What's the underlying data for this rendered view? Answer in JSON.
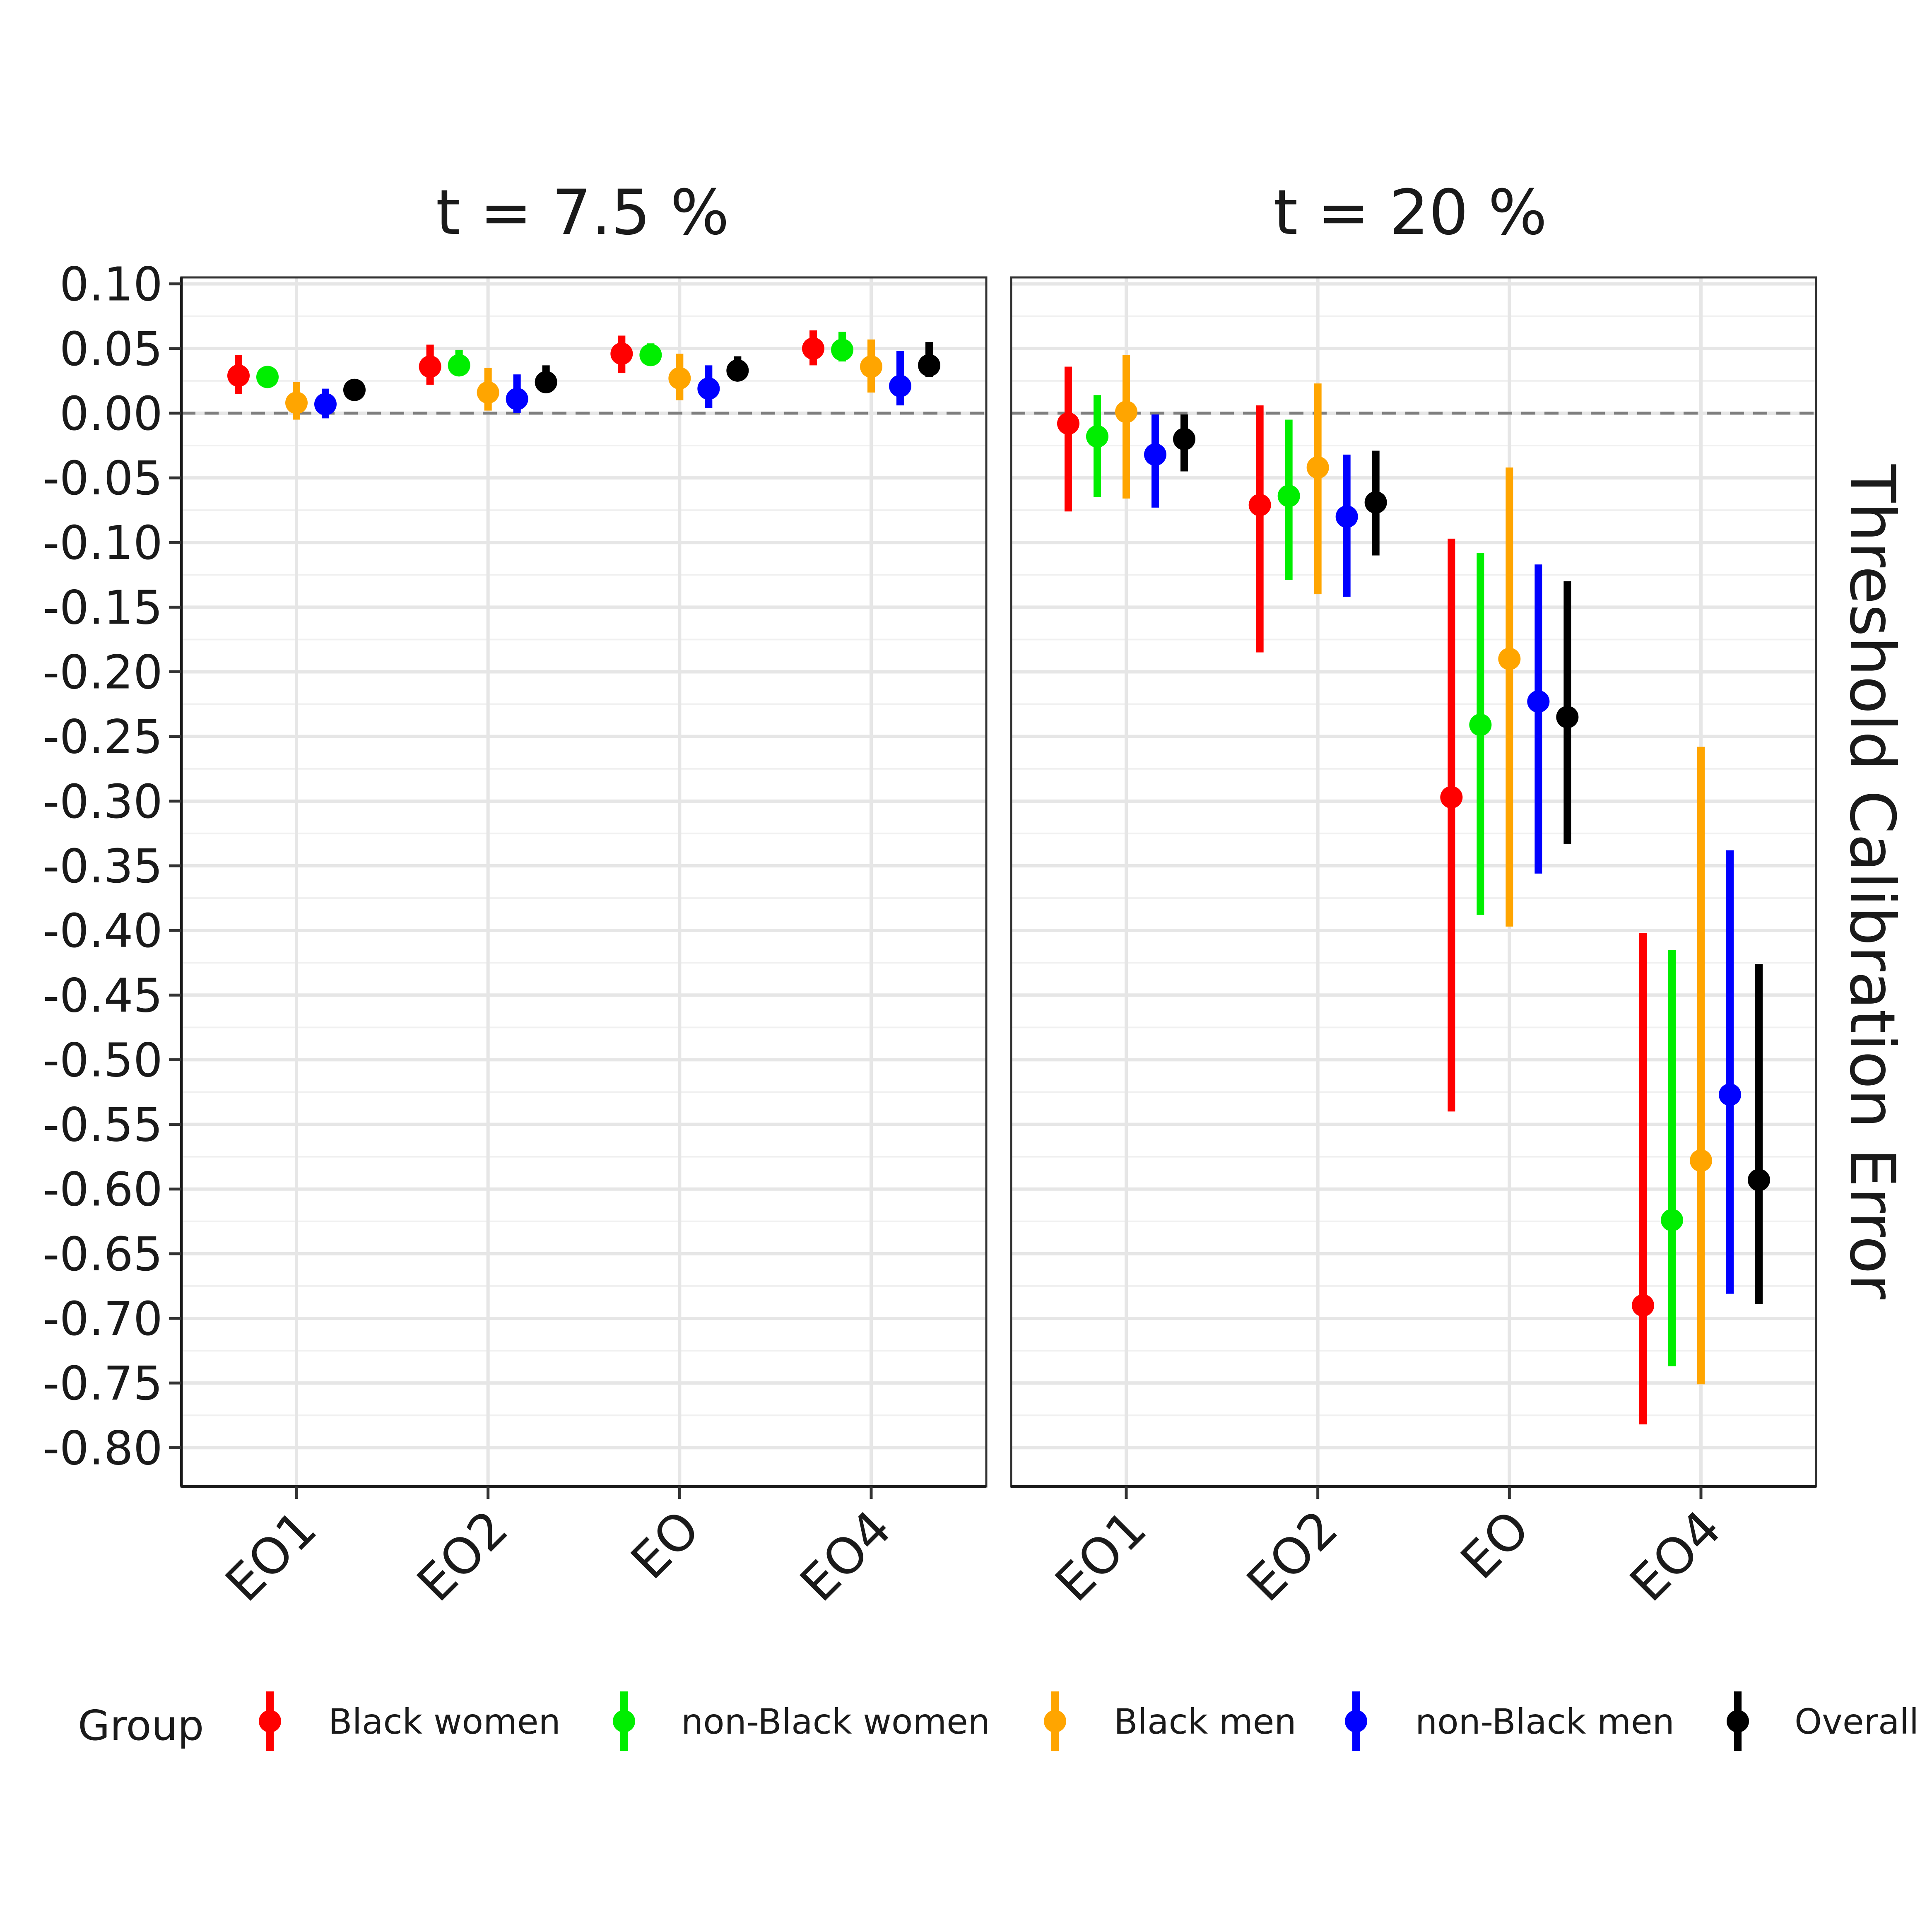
{
  "chart_data": {
    "type": "errorbar",
    "ylabel": "Threshold Calibration Error",
    "ylim": [
      -0.83,
      0.105
    ],
    "y_ticks": [
      "0.10",
      "0.05",
      "0.00",
      "-0.05",
      "-0.10",
      "-0.15",
      "-0.20",
      "-0.25",
      "-0.30",
      "-0.35",
      "-0.40",
      "-0.45",
      "-0.50",
      "-0.55",
      "-0.60",
      "-0.65",
      "-0.70",
      "-0.75",
      "-0.80"
    ],
    "y_tick_values": [
      0.1,
      0.05,
      0.0,
      -0.05,
      -0.1,
      -0.15,
      -0.2,
      -0.25,
      -0.3,
      -0.35,
      -0.4,
      -0.45,
      -0.5,
      -0.55,
      -0.6,
      -0.65,
      -0.7,
      -0.75,
      -0.8
    ],
    "reference_line": 0.0,
    "grid": true,
    "categories": [
      "EO1",
      "EO2",
      "EO",
      "EO4"
    ],
    "legend": {
      "title": "Group",
      "position": "bottom",
      "items": [
        "Black women",
        "non-Black women",
        "Black men",
        "non-Black men",
        "Overall"
      ]
    },
    "group_colors": [
      "#ff0000",
      "#00ee00",
      "#ffa500",
      "#0000ff",
      "#000000"
    ],
    "panels": [
      {
        "title": "t = 7.5 %",
        "series": [
          {
            "name": "Black women",
            "y": [
              0.029,
              0.036,
              0.046,
              0.05
            ],
            "lo": [
              0.015,
              0.022,
              0.031,
              0.037
            ],
            "hi": [
              0.045,
              0.053,
              0.06,
              0.064
            ]
          },
          {
            "name": "non-Black women",
            "y": [
              0.028,
              0.037,
              0.045,
              0.049
            ],
            "lo": [
              0.021,
              0.029,
              0.037,
              0.04
            ],
            "hi": [
              0.036,
              0.049,
              0.054,
              0.063
            ]
          },
          {
            "name": "Black men",
            "y": [
              0.008,
              0.016,
              0.027,
              0.036
            ],
            "lo": [
              -0.005,
              0.002,
              0.01,
              0.016
            ],
            "hi": [
              0.024,
              0.035,
              0.046,
              0.057
            ]
          },
          {
            "name": "non-Black men",
            "y": [
              0.007,
              0.011,
              0.019,
              0.021
            ],
            "lo": [
              -0.004,
              0.0,
              0.004,
              0.006
            ],
            "hi": [
              0.019,
              0.03,
              0.037,
              0.048
            ]
          },
          {
            "name": "Overall",
            "y": [
              0.018,
              0.024,
              0.033,
              0.037
            ],
            "lo": [
              0.013,
              0.019,
              0.027,
              0.028
            ],
            "hi": [
              0.024,
              0.037,
              0.044,
              0.055
            ]
          }
        ]
      },
      {
        "title": "t = 20 %",
        "series": [
          {
            "name": "Black women",
            "y": [
              -0.008,
              -0.071,
              -0.297,
              -0.69
            ],
            "lo": [
              -0.076,
              -0.185,
              -0.54,
              -0.782
            ],
            "hi": [
              0.036,
              0.006,
              -0.097,
              -0.402
            ]
          },
          {
            "name": "non-Black women",
            "y": [
              -0.018,
              -0.064,
              -0.241,
              -0.624
            ],
            "lo": [
              -0.065,
              -0.129,
              -0.388,
              -0.737
            ],
            "hi": [
              0.014,
              -0.005,
              -0.108,
              -0.415
            ]
          },
          {
            "name": "Black men",
            "y": [
              0.001,
              -0.042,
              -0.19,
              -0.578
            ],
            "lo": [
              -0.066,
              -0.14,
              -0.397,
              -0.751
            ],
            "hi": [
              0.045,
              0.023,
              -0.042,
              -0.258
            ]
          },
          {
            "name": "non-Black men",
            "y": [
              -0.032,
              -0.08,
              -0.223,
              -0.527
            ],
            "lo": [
              -0.073,
              -0.142,
              -0.356,
              -0.681
            ],
            "hi": [
              -0.001,
              -0.032,
              -0.117,
              -0.338
            ]
          },
          {
            "name": "Overall",
            "y": [
              -0.02,
              -0.069,
              -0.235,
              -0.593
            ],
            "lo": [
              -0.045,
              -0.11,
              -0.333,
              -0.689
            ],
            "hi": [
              -0.001,
              -0.029,
              -0.13,
              -0.426
            ]
          }
        ]
      }
    ]
  }
}
